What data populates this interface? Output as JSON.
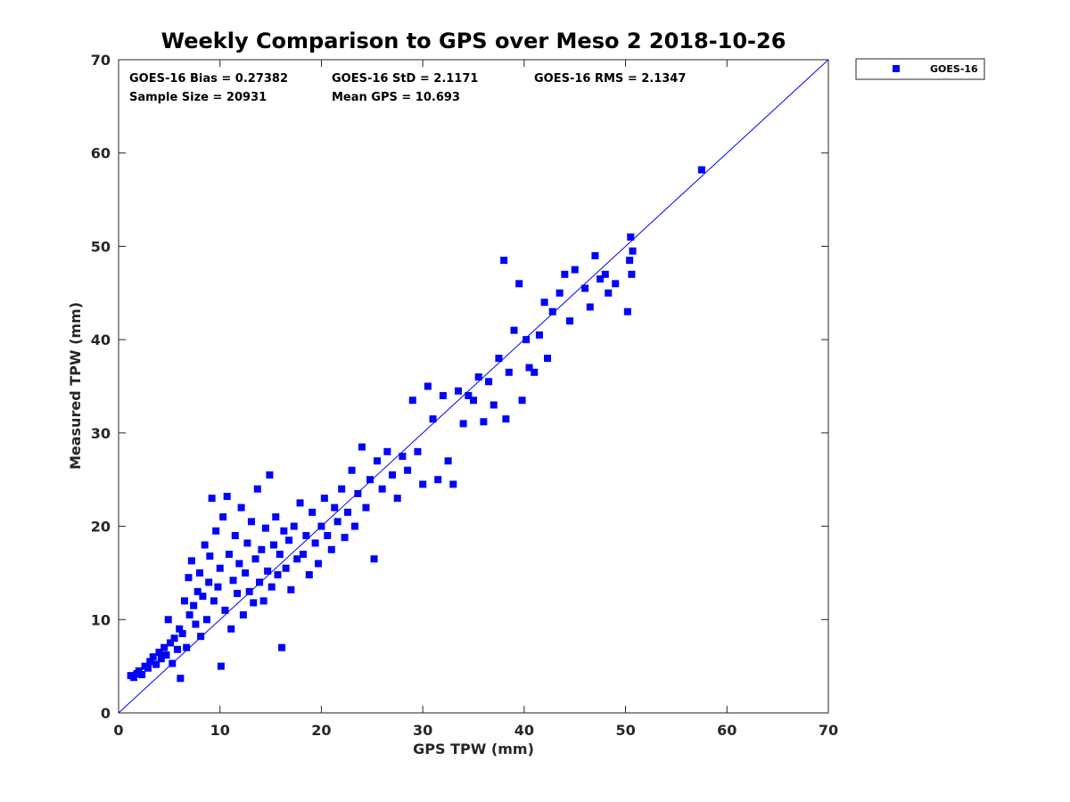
{
  "chart_data": {
    "type": "scatter",
    "title": "Weekly Comparison to GPS over Meso 2 2018-10-26",
    "xlabel": "GPS TPW (mm)",
    "ylabel": "Measured TPW (mm)",
    "xlim": [
      0,
      70
    ],
    "ylim": [
      0,
      70
    ],
    "xticks": [
      0,
      10,
      20,
      30,
      40,
      50,
      60,
      70
    ],
    "yticks": [
      0,
      10,
      20,
      30,
      40,
      50,
      60,
      70
    ],
    "grid": false,
    "legend": {
      "position": "top-right",
      "entries": [
        "GOES-16"
      ]
    },
    "stats": {
      "bias": "GOES-16 Bias = 0.27382",
      "std": "GOES-16 StD = 2.1171",
      "rms": "GOES-16 RMS = 2.1347",
      "sample_size": "Sample Size = 20931",
      "mean_gps": "Mean GPS = 10.693"
    },
    "reference_line": {
      "name": "one-to-one",
      "from": [
        0,
        0
      ],
      "to": [
        70,
        70
      ],
      "color": "#0000ff"
    },
    "series": [
      {
        "name": "GOES-16",
        "color": "#0000ff",
        "marker": "square",
        "points": [
          [
            1.2,
            4.0
          ],
          [
            1.5,
            3.8
          ],
          [
            1.8,
            4.2
          ],
          [
            2.0,
            4.5
          ],
          [
            2.3,
            4.1
          ],
          [
            2.6,
            5.0
          ],
          [
            2.9,
            4.8
          ],
          [
            3.1,
            5.5
          ],
          [
            3.4,
            6.0
          ],
          [
            3.7,
            5.2
          ],
          [
            4.0,
            6.5
          ],
          [
            4.2,
            5.8
          ],
          [
            4.5,
            7.0
          ],
          [
            4.7,
            6.2
          ],
          [
            4.9,
            10.0
          ],
          [
            5.1,
            7.5
          ],
          [
            5.3,
            5.3
          ],
          [
            5.5,
            8.0
          ],
          [
            5.8,
            6.8
          ],
          [
            6.0,
            9.0
          ],
          [
            6.1,
            3.7
          ],
          [
            6.3,
            8.5
          ],
          [
            6.5,
            12.0
          ],
          [
            6.7,
            7.0
          ],
          [
            6.9,
            14.5
          ],
          [
            7.0,
            10.5
          ],
          [
            7.2,
            16.3
          ],
          [
            7.4,
            11.5
          ],
          [
            7.6,
            9.5
          ],
          [
            7.8,
            13.0
          ],
          [
            8.0,
            15.0
          ],
          [
            8.1,
            8.2
          ],
          [
            8.3,
            12.5
          ],
          [
            8.5,
            18.0
          ],
          [
            8.7,
            10.0
          ],
          [
            8.9,
            14.0
          ],
          [
            9.0,
            16.8
          ],
          [
            9.2,
            23.0
          ],
          [
            9.4,
            12.0
          ],
          [
            9.6,
            19.5
          ],
          [
            9.8,
            13.5
          ],
          [
            10.0,
            15.5
          ],
          [
            10.1,
            5.0
          ],
          [
            10.3,
            21.0
          ],
          [
            10.5,
            11.0
          ],
          [
            10.7,
            23.2
          ],
          [
            10.9,
            17.0
          ],
          [
            11.1,
            9.0
          ],
          [
            11.3,
            14.2
          ],
          [
            11.5,
            19.0
          ],
          [
            11.7,
            12.8
          ],
          [
            11.9,
            16.0
          ],
          [
            12.1,
            22.0
          ],
          [
            12.3,
            10.5
          ],
          [
            12.5,
            15.0
          ],
          [
            12.7,
            18.2
          ],
          [
            12.9,
            13.0
          ],
          [
            13.1,
            20.5
          ],
          [
            13.3,
            11.8
          ],
          [
            13.5,
            16.5
          ],
          [
            13.7,
            24.0
          ],
          [
            13.9,
            14.0
          ],
          [
            14.1,
            17.5
          ],
          [
            14.3,
            12.0
          ],
          [
            14.5,
            19.8
          ],
          [
            14.7,
            15.2
          ],
          [
            14.9,
            25.5
          ],
          [
            15.1,
            13.5
          ],
          [
            15.3,
            18.0
          ],
          [
            15.5,
            21.0
          ],
          [
            15.7,
            14.8
          ],
          [
            15.9,
            17.0
          ],
          [
            16.1,
            7.0
          ],
          [
            16.3,
            19.5
          ],
          [
            16.5,
            15.5
          ],
          [
            16.8,
            18.5
          ],
          [
            17.0,
            13.2
          ],
          [
            17.3,
            20.0
          ],
          [
            17.6,
            16.5
          ],
          [
            17.9,
            22.5
          ],
          [
            18.2,
            17.0
          ],
          [
            18.5,
            19.0
          ],
          [
            18.8,
            14.8
          ],
          [
            19.1,
            21.5
          ],
          [
            19.4,
            18.2
          ],
          [
            19.7,
            16.0
          ],
          [
            20.0,
            20.0
          ],
          [
            20.3,
            23.0
          ],
          [
            20.6,
            19.0
          ],
          [
            21.0,
            17.5
          ],
          [
            21.3,
            22.0
          ],
          [
            21.6,
            20.5
          ],
          [
            22.0,
            24.0
          ],
          [
            22.3,
            18.8
          ],
          [
            22.6,
            21.5
          ],
          [
            23.0,
            26.0
          ],
          [
            23.3,
            20.0
          ],
          [
            23.6,
            23.5
          ],
          [
            24.0,
            28.5
          ],
          [
            24.4,
            22.0
          ],
          [
            24.8,
            25.0
          ],
          [
            25.2,
            16.5
          ],
          [
            25.5,
            27.0
          ],
          [
            26.0,
            24.0
          ],
          [
            26.5,
            28.0
          ],
          [
            27.0,
            25.5
          ],
          [
            27.5,
            23.0
          ],
          [
            28.0,
            27.5
          ],
          [
            28.5,
            26.0
          ],
          [
            29.0,
            33.5
          ],
          [
            29.5,
            28.0
          ],
          [
            30.0,
            24.5
          ],
          [
            30.5,
            35.0
          ],
          [
            31.0,
            31.5
          ],
          [
            31.5,
            25.0
          ],
          [
            32.0,
            34.0
          ],
          [
            32.5,
            27.0
          ],
          [
            33.0,
            24.5
          ],
          [
            33.5,
            34.5
          ],
          [
            34.0,
            31.0
          ],
          [
            34.5,
            34.0
          ],
          [
            35.0,
            33.5
          ],
          [
            35.5,
            36.0
          ],
          [
            36.0,
            31.2
          ],
          [
            36.5,
            35.5
          ],
          [
            37.0,
            33.0
          ],
          [
            37.5,
            38.0
          ],
          [
            38.0,
            48.5
          ],
          [
            38.2,
            31.5
          ],
          [
            38.5,
            36.5
          ],
          [
            39.0,
            41.0
          ],
          [
            39.5,
            46.0
          ],
          [
            39.8,
            33.5
          ],
          [
            40.2,
            40.0
          ],
          [
            40.5,
            37.0
          ],
          [
            41.0,
            36.5
          ],
          [
            41.5,
            40.5
          ],
          [
            42.0,
            44.0
          ],
          [
            42.3,
            38.0
          ],
          [
            42.8,
            43.0
          ],
          [
            43.5,
            45.0
          ],
          [
            44.0,
            47.0
          ],
          [
            44.5,
            42.0
          ],
          [
            45.0,
            47.5
          ],
          [
            46.0,
            45.5
          ],
          [
            46.5,
            43.5
          ],
          [
            47.0,
            49.0
          ],
          [
            47.5,
            46.5
          ],
          [
            48.0,
            47.0
          ],
          [
            48.3,
            45.0
          ],
          [
            49.0,
            46.0
          ],
          [
            50.2,
            43.0
          ],
          [
            50.4,
            48.5
          ],
          [
            50.5,
            51.0
          ],
          [
            50.6,
            47.0
          ],
          [
            50.7,
            49.5
          ],
          [
            57.5,
            58.2
          ]
        ]
      }
    ]
  }
}
